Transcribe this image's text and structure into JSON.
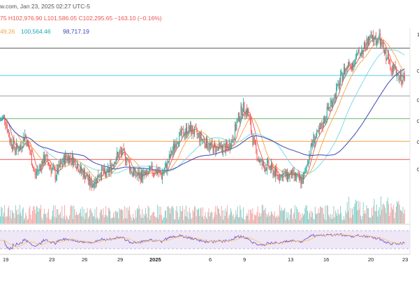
{
  "header": {
    "source_fragment": "w.com, Jan 23, 2025 02:27 UTC-5",
    "ohlc_text": "75  H102,976.90  L101,586.05  C102,295.65  −163.10 (−0.16%)",
    "ma_values": [
      "49.26",
      "100,564.46",
      "98,717.19"
    ]
  },
  "colors": {
    "up": "#26a69a",
    "down": "#ef5350",
    "ma_fast": "#ef5350",
    "ma_mid": "#f7a440",
    "ma_slow_cyan": "#7fdbe8",
    "ma_slow_blue": "#3a45b8",
    "rsi_line": "#7e57c2",
    "rsi_signal": "#f7c873",
    "rsi_band": "#ede7f6"
  },
  "x_axis": {
    "labels": [
      "19",
      "23",
      "26",
      "29",
      "2025",
      "6",
      "9",
      "13",
      "16",
      "20",
      "23"
    ]
  },
  "right_labels": [
    "1",
    "0",
    "0",
    "0",
    "0",
    "0"
  ],
  "chart_data": {
    "type": "candlestick",
    "candles_per_day": 6,
    "price_path": [
      98,
      99,
      94,
      92,
      92,
      95,
      91,
      86,
      88,
      90,
      88,
      86,
      88,
      90,
      90,
      89,
      87,
      86,
      84,
      85,
      87,
      86,
      88,
      90,
      91,
      90,
      87,
      86,
      86,
      86,
      87,
      87,
      86,
      88,
      91,
      94,
      95,
      96,
      96,
      95,
      94,
      93,
      92,
      92,
      92,
      92,
      94,
      98,
      101,
      100,
      94,
      90,
      88,
      88,
      87,
      86,
      86,
      86,
      86,
      85,
      85,
      90,
      94,
      95,
      98,
      101,
      103,
      106,
      109,
      110,
      111,
      113,
      114,
      116,
      116,
      116,
      113,
      111,
      109,
      108,
      107
    ],
    "horizontal_levels": [
      {
        "kind": "resistance",
        "color": "#555555",
        "price": 114
      },
      {
        "kind": "fib",
        "color": "#5bc7e0",
        "price": 108
      },
      {
        "kind": "fib",
        "color": "#9e9e9e",
        "price": 103.5
      },
      {
        "kind": "fib",
        "color": "#66bb6a",
        "price": 98.5
      },
      {
        "kind": "fib",
        "color": "#f7a440",
        "price": 93.5
      },
      {
        "kind": "fib",
        "color": "#ef5350",
        "price": 89.5
      }
    ],
    "rsi": {
      "range": [
        0,
        100
      ],
      "levels": [
        30,
        70
      ]
    }
  }
}
